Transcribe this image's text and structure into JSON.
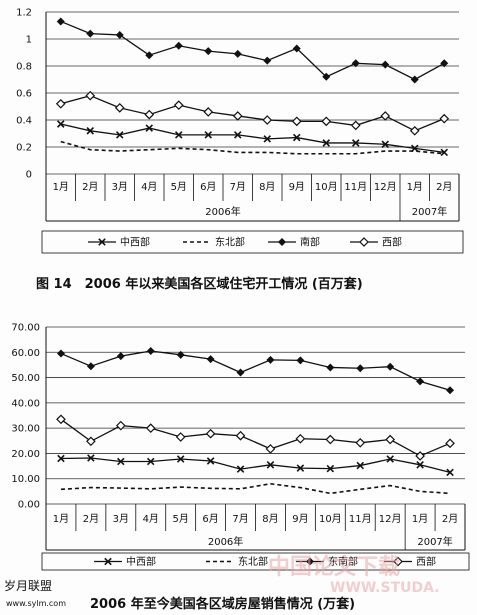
{
  "chart_data": [
    {
      "type": "line",
      "title": "",
      "categories": [
        "1月",
        "2月",
        "3月",
        "4月",
        "5月",
        "6月",
        "7月",
        "8月",
        "9月",
        "10月",
        "11月",
        "12月",
        "1月",
        "2月"
      ],
      "year_groups": [
        {
          "label": "2006年",
          "from": 0,
          "to": 11
        },
        {
          "label": "2007年",
          "from": 12,
          "to": 13
        }
      ],
      "ylim": [
        0,
        1.2
      ],
      "yticks": [
        "0",
        "0.2",
        "0.4",
        "0.6",
        "0.8",
        "1",
        "1.2"
      ],
      "grid": true,
      "legend_position": "bottom",
      "series": [
        {
          "name": "中西部",
          "marker": "x",
          "style": "solid",
          "values": [
            0.37,
            0.32,
            0.29,
            0.34,
            0.29,
            0.29,
            0.29,
            0.26,
            0.27,
            0.23,
            0.23,
            0.22,
            0.19,
            0.16
          ]
        },
        {
          "name": "东北部",
          "marker": "none",
          "style": "dashed",
          "values": [
            0.24,
            0.18,
            0.17,
            0.18,
            0.19,
            0.18,
            0.16,
            0.16,
            0.15,
            0.15,
            0.15,
            0.17,
            0.17,
            0.15
          ]
        },
        {
          "name": "南部",
          "marker": "diamond",
          "style": "solid",
          "values": [
            1.13,
            1.04,
            1.03,
            0.88,
            0.95,
            0.91,
            0.89,
            0.84,
            0.93,
            0.72,
            0.82,
            0.81,
            0.7,
            0.82
          ]
        },
        {
          "name": "西部",
          "marker": "open-diamond",
          "style": "solid",
          "values": [
            0.52,
            0.58,
            0.49,
            0.44,
            0.51,
            0.46,
            0.43,
            0.4,
            0.39,
            0.39,
            0.36,
            0.43,
            0.32,
            0.41
          ]
        }
      ],
      "caption": "图 14　2006 年以来美国各区域住宅开工情况 (百万套)"
    },
    {
      "type": "line",
      "title": "",
      "categories": [
        "1月",
        "2月",
        "3月",
        "4月",
        "5月",
        "6月",
        "7月",
        "8月",
        "9月",
        "10月",
        "11月",
        "12月",
        "1月",
        "2月"
      ],
      "year_groups": [
        {
          "label": "2006年",
          "from": 0,
          "to": 11
        },
        {
          "label": "2007年",
          "from": 12,
          "to": 13
        }
      ],
      "ylim": [
        0,
        70
      ],
      "yticks": [
        "0.00",
        "10.00",
        "20.00",
        "30.00",
        "40.00",
        "50.00",
        "60.00",
        "70.00"
      ],
      "grid": true,
      "legend_position": "bottom",
      "series": [
        {
          "name": "中西部",
          "marker": "x",
          "style": "solid",
          "values": [
            18,
            18.2,
            16.8,
            16.8,
            17.8,
            17,
            13.8,
            15.5,
            14.2,
            14,
            15.2,
            17.8,
            15.5,
            12.5
          ]
        },
        {
          "name": "东北部",
          "marker": "none",
          "style": "dashed",
          "values": [
            5.8,
            6.5,
            6.3,
            6,
            6.7,
            6.2,
            6,
            8,
            6.5,
            4.2,
            5.8,
            7.3,
            5,
            4.2
          ]
        },
        {
          "name": "东南部",
          "marker": "diamond",
          "style": "solid",
          "values": [
            59.5,
            54.5,
            58.5,
            60.5,
            59,
            57.3,
            52,
            57,
            56.8,
            54,
            53.7,
            54.3,
            48.5,
            45
          ]
        },
        {
          "name": "西部",
          "marker": "open-diamond",
          "style": "solid",
          "values": [
            33.5,
            24.8,
            31,
            30,
            26.5,
            27.8,
            27,
            21.8,
            25.8,
            25.5,
            24.2,
            25.5,
            19,
            24
          ]
        }
      ],
      "caption": "2006 年至今美国各区域房屋销售情况 (万套)"
    }
  ],
  "watermark": {
    "text": "中国论文下载",
    "url": "WWW.STUDA.",
    "logo": "岁月联盟",
    "logo_url": "www.sylm.com"
  },
  "colors": {
    "line": "#111111",
    "grid": "#333333",
    "watermark": "#e9a7a7"
  }
}
